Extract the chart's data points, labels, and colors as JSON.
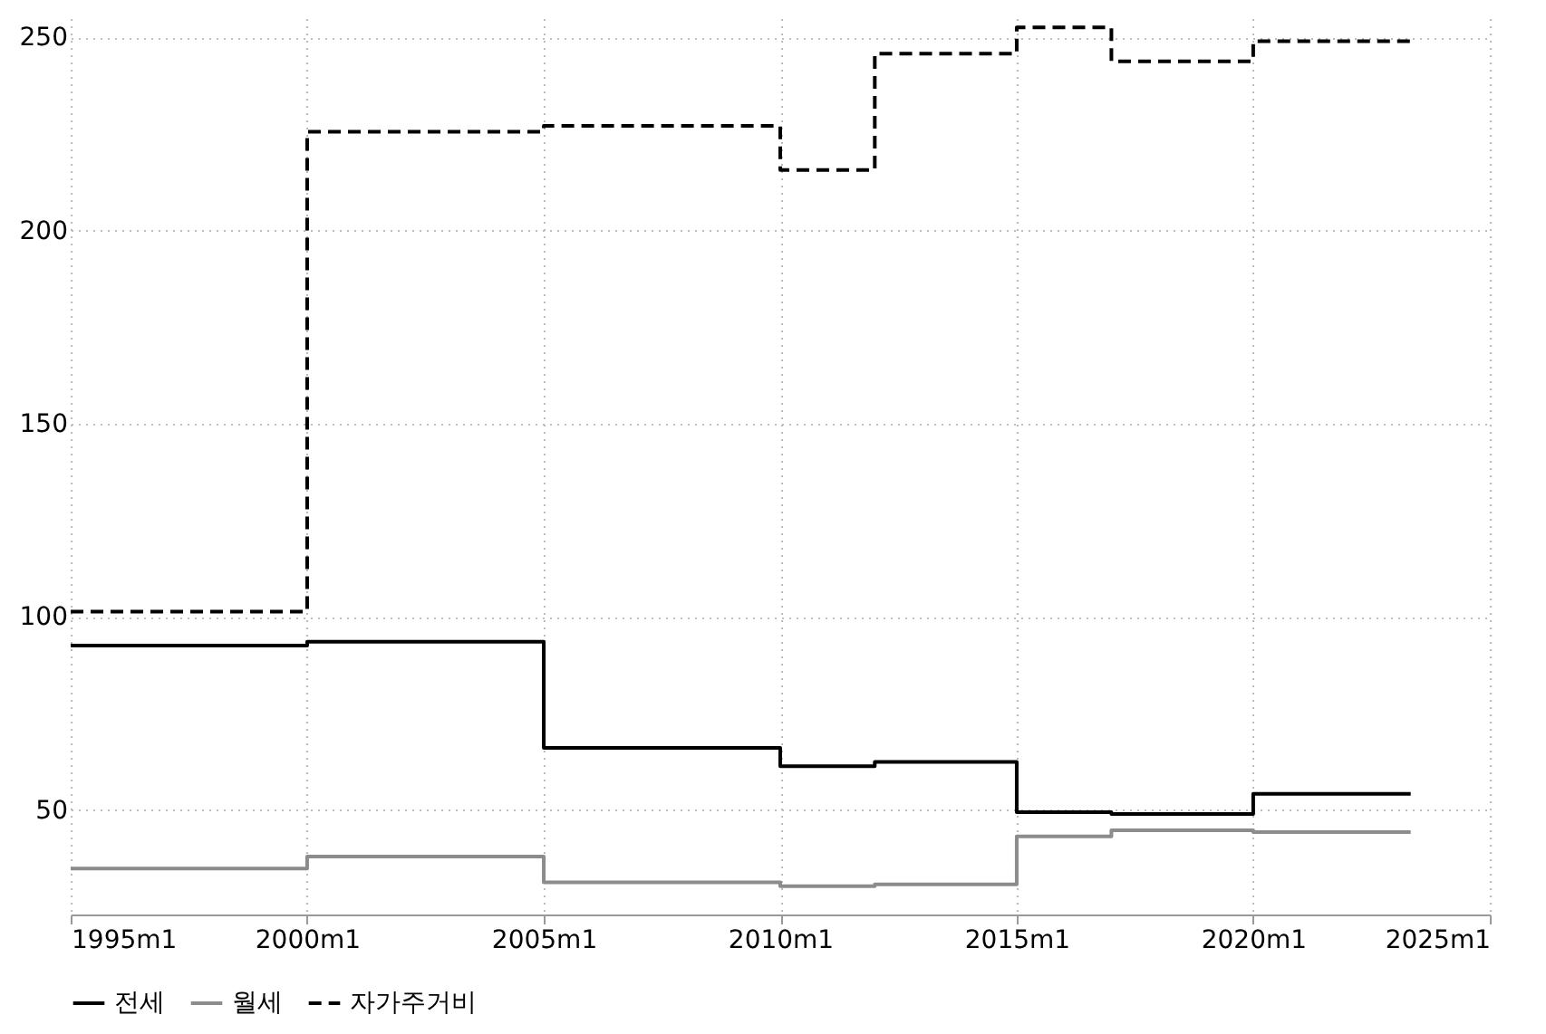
{
  "chart_data": {
    "type": "step",
    "xlim": [
      "1995-01",
      "2025-01"
    ],
    "xticks": [
      {
        "value": "1995-01",
        "label": "1995m1"
      },
      {
        "value": "2000-01",
        "label": "2000m1"
      },
      {
        "value": "2005-01",
        "label": "2005m1"
      },
      {
        "value": "2010-01",
        "label": "2010m1"
      },
      {
        "value": "2015-01",
        "label": "2015m1"
      },
      {
        "value": "2020-01",
        "label": "2020m1"
      },
      {
        "value": "2025-01",
        "label": "2025m1"
      }
    ],
    "ylim": [
      23,
      255
    ],
    "yticks": [
      50,
      100,
      150,
      200,
      250
    ],
    "x": [
      "1995-01",
      "2000-01",
      "2005-01",
      "2010-01",
      "2012-01",
      "2015-01",
      "2017-01",
      "2020-01",
      "2023-05"
    ],
    "series": [
      {
        "name": "전세",
        "color": "#000000",
        "line_style": "solid",
        "values": [
          92.6,
          93.6,
          66.1,
          61.4,
          62.5,
          49.5,
          49,
          54.2,
          54.2
        ]
      },
      {
        "name": "월세",
        "color": "#8c8c8c",
        "line_style": "solid",
        "values": [
          34.9,
          38,
          31.3,
          30.3,
          30.8,
          43.2,
          44.8,
          44.3,
          44.3
        ]
      },
      {
        "name": "자가주거비",
        "color": "#000000",
        "line_style": "dashed",
        "values": [
          101.4,
          225.6,
          227.1,
          215.7,
          245.8,
          252.6,
          243.8,
          249,
          249
        ]
      }
    ],
    "grid": true,
    "legend": "bottom"
  }
}
